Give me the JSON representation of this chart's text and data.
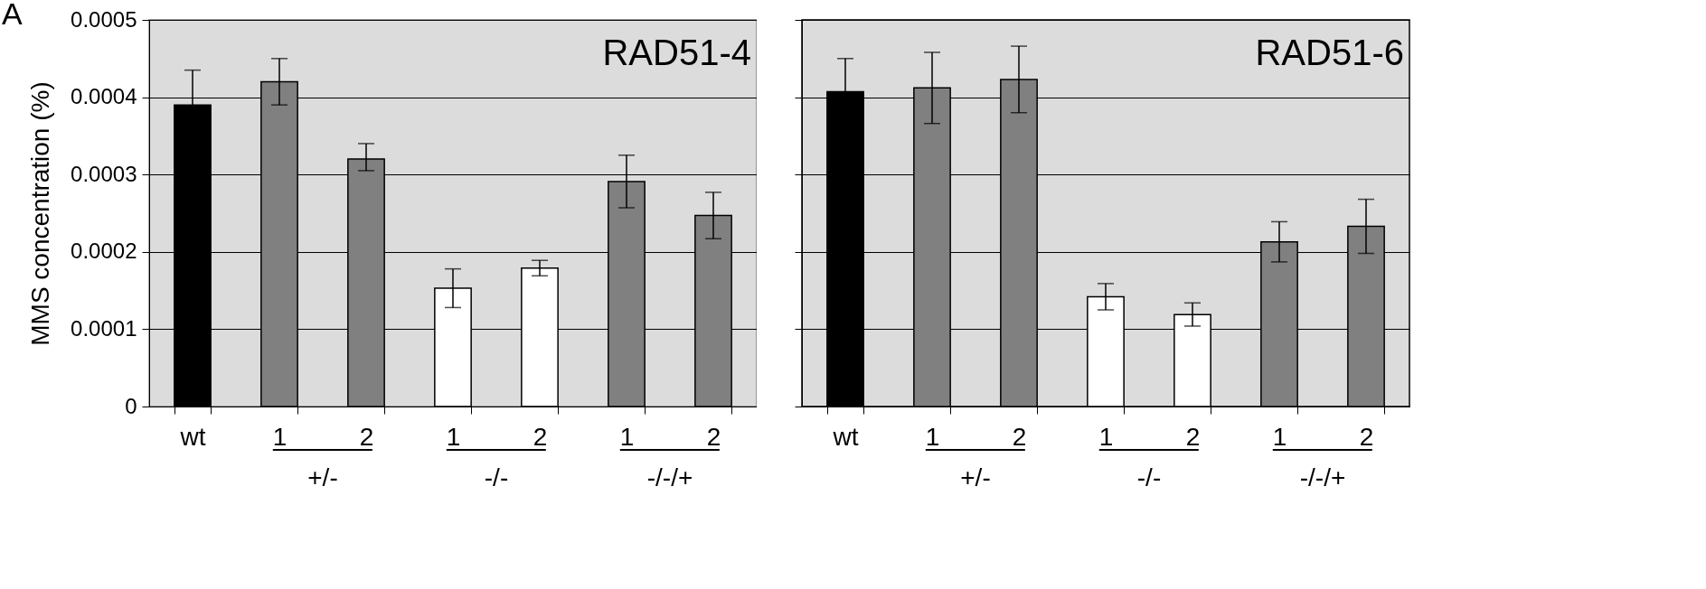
{
  "chart_data": [
    {
      "type": "bar",
      "title": "RAD51-4",
      "ylabel": "MMS concentration (%)",
      "categories": [
        "wt",
        "1",
        "2",
        "1",
        "2",
        "1",
        "2"
      ],
      "values": [
        0.00039,
        0.00042,
        0.00032,
        0.000153,
        0.000179,
        0.000291,
        0.000247
      ],
      "errors": [
        4.5e-05,
        3e-05,
        [
          0.000305,
          0.00034
        ],
        2.5e-05,
        1e-05,
        3.4e-05,
        3e-05
      ],
      "colors": [
        "#000000",
        "#808080",
        "#808080",
        "#ffffff",
        "#ffffff",
        "#808080",
        "#808080"
      ],
      "ylim": [
        0,
        0.0005
      ],
      "yticks": [
        0,
        0.0001,
        0.0002,
        0.0003,
        0.0004,
        0.0005
      ],
      "grid": "y",
      "annotations": [
        "A",
        "+/-",
        "-/-",
        "-/-/+"
      ]
    },
    {
      "type": "bar",
      "title": "RAD51-6",
      "categories": [
        "wt",
        "1",
        "2",
        "1",
        "2",
        "1",
        "2"
      ],
      "values": [
        0.000407,
        0.000412,
        0.000423,
        0.000142,
        0.000119,
        0.000213,
        0.000233
      ],
      "errors": [
        4.3e-05,
        4.6e-05,
        4.3e-05,
        1.7e-05,
        1.5e-05,
        2.6e-05,
        3.5e-05
      ],
      "colors": [
        "#000000",
        "#808080",
        "#808080",
        "#ffffff",
        "#ffffff",
        "#808080",
        "#808080"
      ],
      "ylim": [
        0,
        0.0005
      ],
      "yticks": [
        0,
        0.0001,
        0.0002,
        0.0003,
        0.0004,
        0.0005
      ],
      "grid": "y",
      "tick_labels": "x",
      "annotations": [
        "+/-",
        "-/-",
        "-/-/+"
      ]
    }
  ]
}
